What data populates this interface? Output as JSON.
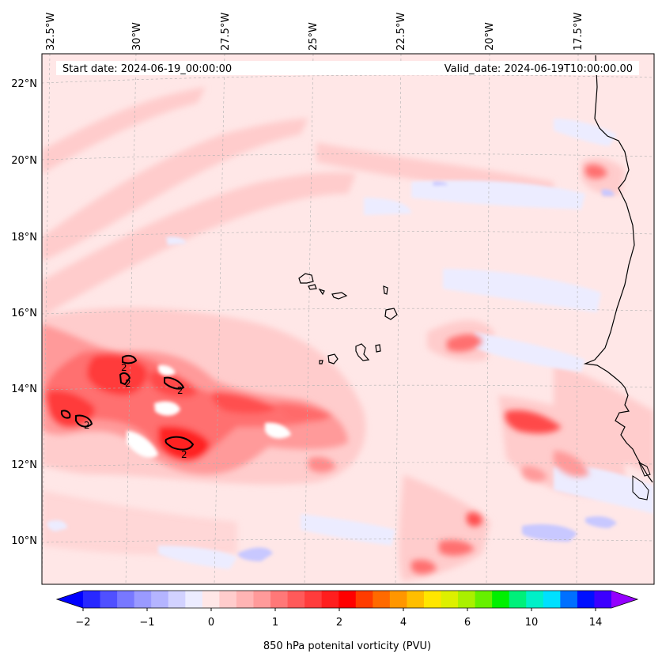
{
  "header": {
    "start_date": "Start date: 2024-06-19_00:00:00",
    "valid_date": "Valid_date: 2024-06-19T10:00:00.00"
  },
  "map": {
    "lon_labels": [
      "32.5°W",
      "30°W",
      "27.5°W",
      "25°W",
      "22.5°W",
      "20°W",
      "17.5°W"
    ],
    "lat_labels": [
      "22°N",
      "20°N",
      "18°N",
      "16°N",
      "14°N",
      "12°N",
      "10°N"
    ],
    "contour_label": "2",
    "colors": {
      "background": "#ffe7e7",
      "light_red": "#ffcccc",
      "red": "#ff8c8c",
      "strong_red": "#ff3030",
      "deep_red": "#ff0000",
      "light_blue": "#ececff",
      "blue": "#c8c8ff"
    }
  },
  "colorbar": {
    "tick_labels": [
      "−2",
      "−1",
      "0",
      "1",
      "2",
      "4",
      "6",
      "10",
      "14"
    ],
    "label": "850 hPa potenital vorticity (PVU)",
    "colors": [
      "#0000ff",
      "#2828ff",
      "#5050ff",
      "#7878ff",
      "#9a9aff",
      "#b4b4ff",
      "#d2d2ff",
      "#ececff",
      "#ffe7e7",
      "#ffcccc",
      "#ffb4b4",
      "#ff9a9a",
      "#ff7878",
      "#ff5a5a",
      "#ff3c3c",
      "#ff1e1e",
      "#ff0000",
      "#ff3c00",
      "#ff6a00",
      "#ff9600",
      "#ffbe00",
      "#ffe600",
      "#ddf000",
      "#aaf000",
      "#66f000",
      "#00f000",
      "#00f07a",
      "#00f0c8",
      "#00e0ff",
      "#0070ff",
      "#0010ff",
      "#3c00ff",
      "#9400ff"
    ]
  }
}
